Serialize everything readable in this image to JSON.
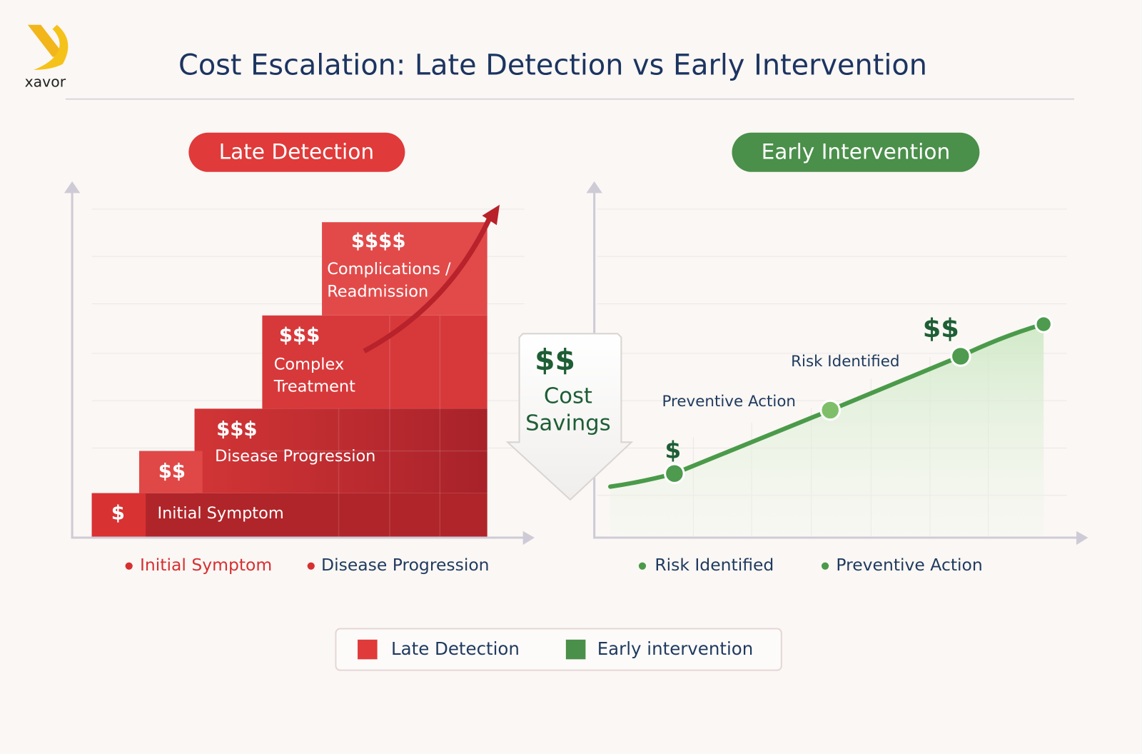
{
  "logo": "xavor",
  "header": {
    "title": "Cost Escalation: Late Detection vs Early Intervention"
  },
  "late": {
    "title": "Late Detection",
    "steps": [
      {
        "cost": "$",
        "label": [
          "Initial Symptom"
        ]
      },
      {
        "cost": "$$"
      },
      {
        "cost": "$$$",
        "label": [
          "Disease Progression"
        ]
      },
      {
        "cost": "$$$",
        "label": [
          "Complex",
          "Treatment"
        ]
      },
      {
        "cost": "$$$$",
        "label": [
          "Complications /",
          "Readmission"
        ]
      }
    ],
    "axis_labels": [
      "Initial Symptom",
      "Disease Progression"
    ]
  },
  "savings": {
    "cost": "$$",
    "label": [
      "Cost",
      "Savings"
    ]
  },
  "early": {
    "title": "Early Intervention",
    "annotations": [
      "$",
      "Preventive Action",
      "Risk Identified",
      "$$"
    ],
    "axis_labels": [
      "Risk Identified",
      "Preventive Action"
    ]
  },
  "legend": [
    "Late Detection",
    "Early intervention"
  ]
}
